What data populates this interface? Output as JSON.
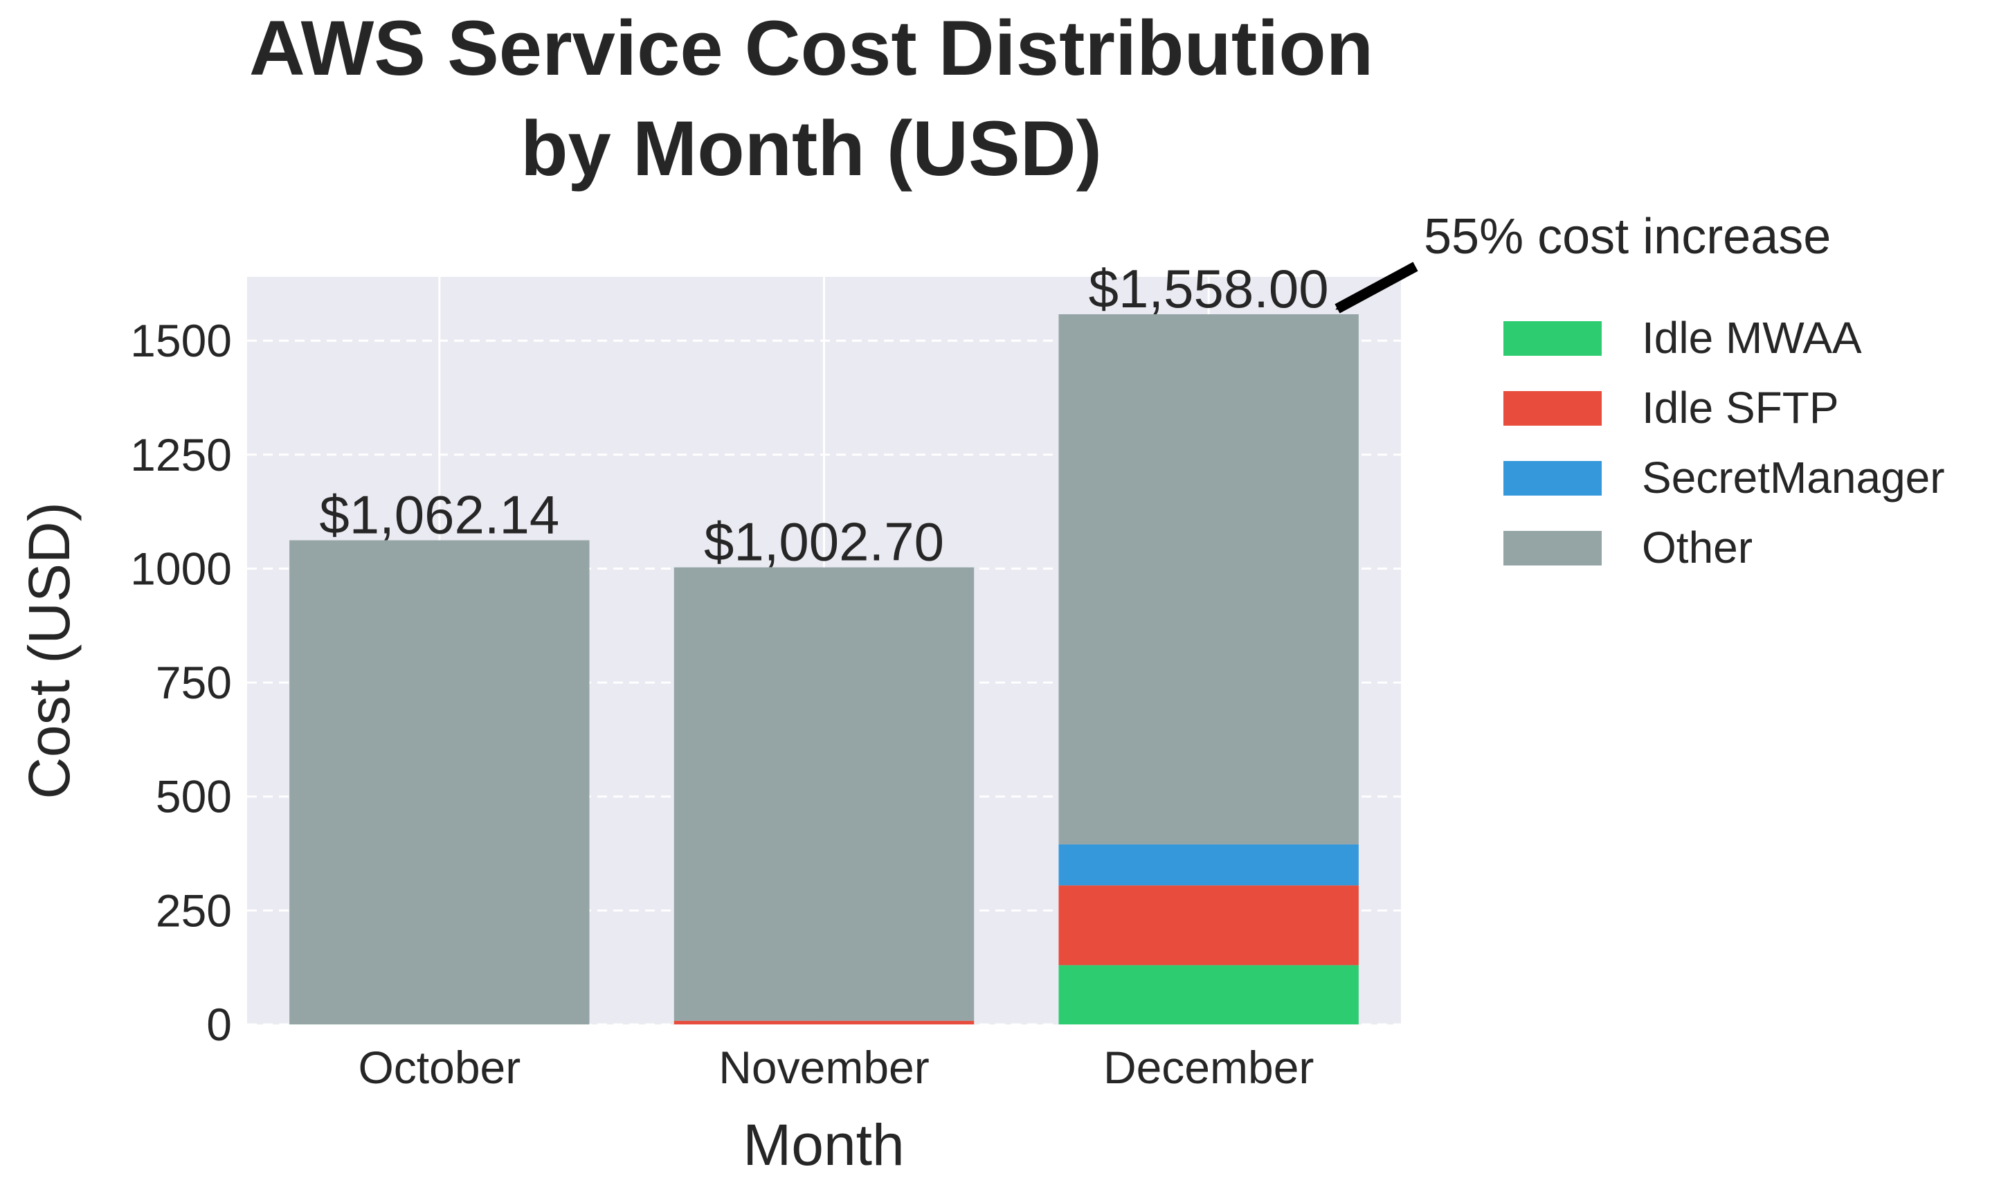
{
  "chart_data": {
    "type": "bar",
    "stacked": true,
    "title_lines": [
      "AWS Service Cost Distribution",
      "by Month (USD)"
    ],
    "xlabel": "Month",
    "ylabel": "Cost (USD)",
    "categories": [
      "October",
      "November",
      "December"
    ],
    "ylim": [
      0,
      1640
    ],
    "yticks": [
      0,
      250,
      500,
      750,
      1000,
      1250,
      1500
    ],
    "grid": true,
    "legend_position": "outside-right",
    "series": [
      {
        "name": "Idle MWAA",
        "color": "#2ecc71",
        "values": [
          0,
          0,
          130
        ]
      },
      {
        "name": "Idle SFTP",
        "color": "#e74c3c",
        "values": [
          0,
          8,
          175
        ]
      },
      {
        "name": "SecretManager",
        "color": "#3498db",
        "values": [
          0,
          0,
          90
        ]
      },
      {
        "name": "Other",
        "color": "#95a5a6",
        "values": [
          1062.14,
          994.7,
          1163
        ]
      }
    ],
    "totals": [
      1062.14,
      1002.7,
      1558.0
    ],
    "total_labels": [
      "$1,062.14",
      "$1,002.70",
      "$1,558.00"
    ],
    "annotation": {
      "text": "55% cost increase",
      "target_category": "December"
    },
    "plot_background": "#eaeaf2"
  }
}
